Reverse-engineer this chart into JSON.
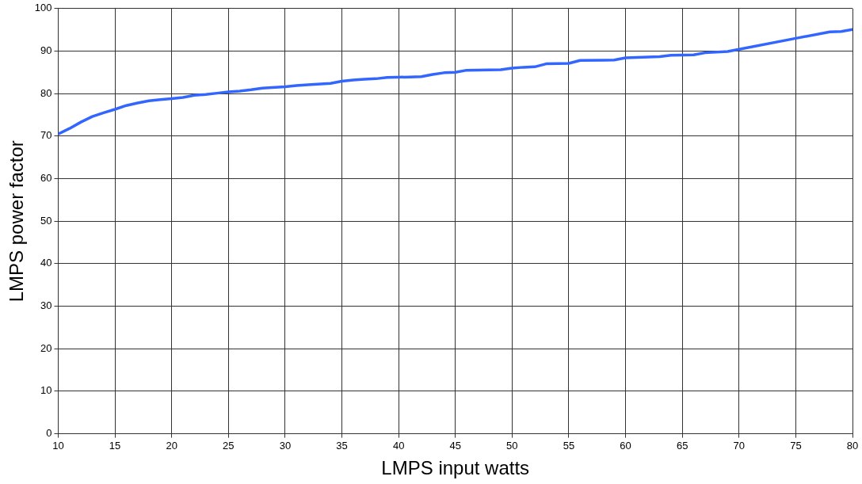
{
  "chart_data": {
    "type": "line",
    "xlabel": "LMPS input watts",
    "ylabel": "LMPS power factor",
    "xlim": [
      10,
      80
    ],
    "xticks": [
      10,
      15,
      20,
      25,
      30,
      35,
      40,
      45,
      50,
      55,
      60,
      65,
      70,
      75,
      80
    ],
    "ylim": [
      0,
      100
    ],
    "yticks": [
      0,
      10,
      20,
      30,
      40,
      50,
      60,
      70,
      80,
      90,
      100
    ],
    "grid": true,
    "legend": false,
    "marker": "none",
    "line_style": "solid",
    "series": [
      {
        "color": "#3366ff",
        "x": [
          10,
          11,
          12,
          13,
          14,
          15,
          16,
          17,
          18,
          19,
          20,
          21,
          22,
          23,
          24,
          25,
          26,
          27,
          28,
          30,
          31,
          32,
          34,
          35,
          36,
          37,
          38,
          39,
          41,
          42,
          43,
          44,
          45,
          46,
          49,
          50,
          51,
          52,
          53,
          55,
          56,
          59,
          60,
          62,
          63,
          64,
          66,
          67,
          69,
          70,
          75,
          78,
          79,
          80
        ],
        "values": [
          70.5,
          71.8,
          73.3,
          74.6,
          75.5,
          76.3,
          77.2,
          77.8,
          78.3,
          78.6,
          78.8,
          79.1,
          79.6,
          79.8,
          80.1,
          80.4,
          80.6,
          80.9,
          81.3,
          81.6,
          81.9,
          82.1,
          82.4,
          82.9,
          83.2,
          83.4,
          83.5,
          83.8,
          83.9,
          84.0,
          84.5,
          84.9,
          85.0,
          85.5,
          85.6,
          86.0,
          86.2,
          86.3,
          87.0,
          87.1,
          87.8,
          87.9,
          88.4,
          88.6,
          88.7,
          89.0,
          89.1,
          89.6,
          89.9,
          90.4,
          93.0,
          94.5,
          94.6,
          95.1
        ]
      }
    ]
  }
}
